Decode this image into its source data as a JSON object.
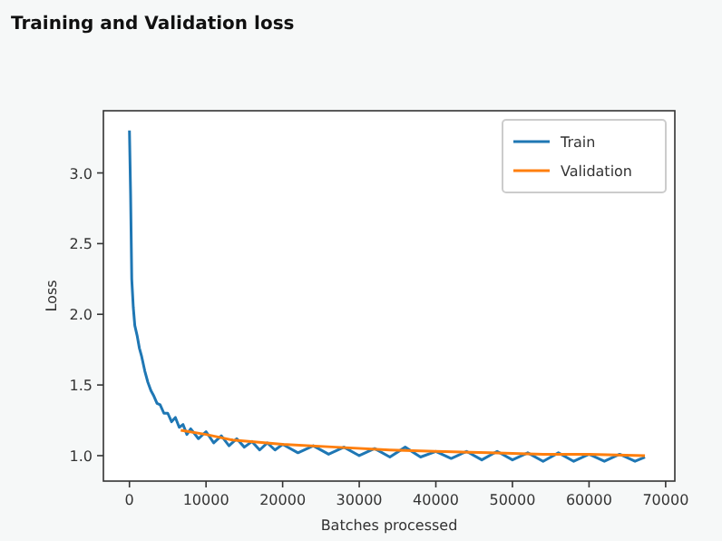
{
  "chart_data": {
    "type": "line",
    "title": "Training and Validation loss",
    "xlabel": "Batches processed",
    "ylabel": "Loss",
    "xlim": [
      -3400,
      71200
    ],
    "ylim": [
      0.82,
      3.44
    ],
    "xticks": [
      0,
      10000,
      20000,
      30000,
      40000,
      50000,
      60000,
      70000
    ],
    "yticks": [
      {
        "value": 1,
        "label": "1.0"
      },
      {
        "value": 1.5,
        "label": "1.5"
      },
      {
        "value": 2,
        "label": "2.0"
      },
      {
        "value": 2.5,
        "label": "2.5"
      },
      {
        "value": 3,
        "label": "3.0"
      }
    ],
    "legend": "top right",
    "grid": false,
    "series": [
      {
        "name": "Train",
        "color": "#1f77b4",
        "x": [
          0,
          150,
          300,
          500,
          700,
          1000,
          1300,
          1600,
          2000,
          2400,
          2800,
          3200,
          3600,
          4000,
          4500,
          5000,
          5500,
          6000,
          6500,
          7000,
          7500,
          8000,
          9000,
          10000,
          11000,
          12000,
          13000,
          14000,
          15000,
          16000,
          17000,
          18000,
          19000,
          20000,
          22000,
          24000,
          26000,
          28000,
          30000,
          32000,
          34000,
          36000,
          38000,
          40000,
          42000,
          44000,
          46000,
          48000,
          50000,
          52000,
          54000,
          56000,
          58000,
          60000,
          62000,
          64000,
          66000,
          67300
        ],
        "values": [
          3.3,
          2.85,
          2.25,
          2.05,
          1.92,
          1.85,
          1.76,
          1.7,
          1.6,
          1.52,
          1.46,
          1.42,
          1.37,
          1.36,
          1.3,
          1.3,
          1.24,
          1.27,
          1.2,
          1.22,
          1.15,
          1.19,
          1.12,
          1.17,
          1.09,
          1.14,
          1.07,
          1.12,
          1.06,
          1.1,
          1.04,
          1.09,
          1.04,
          1.08,
          1.02,
          1.07,
          1.01,
          1.06,
          1.0,
          1.05,
          0.99,
          1.06,
          0.99,
          1.03,
          0.98,
          1.03,
          0.97,
          1.03,
          0.97,
          1.02,
          0.96,
          1.02,
          0.96,
          1.01,
          0.96,
          1.01,
          0.96,
          0.99
        ]
      },
      {
        "name": "Validation",
        "color": "#ff7f0e",
        "x": [
          6700,
          10000,
          13500,
          20000,
          27000,
          34000,
          40000,
          47000,
          54000,
          60000,
          67300
        ],
        "values": [
          1.18,
          1.15,
          1.11,
          1.08,
          1.06,
          1.04,
          1.03,
          1.02,
          1.01,
          1.01,
          1.0
        ]
      }
    ]
  }
}
